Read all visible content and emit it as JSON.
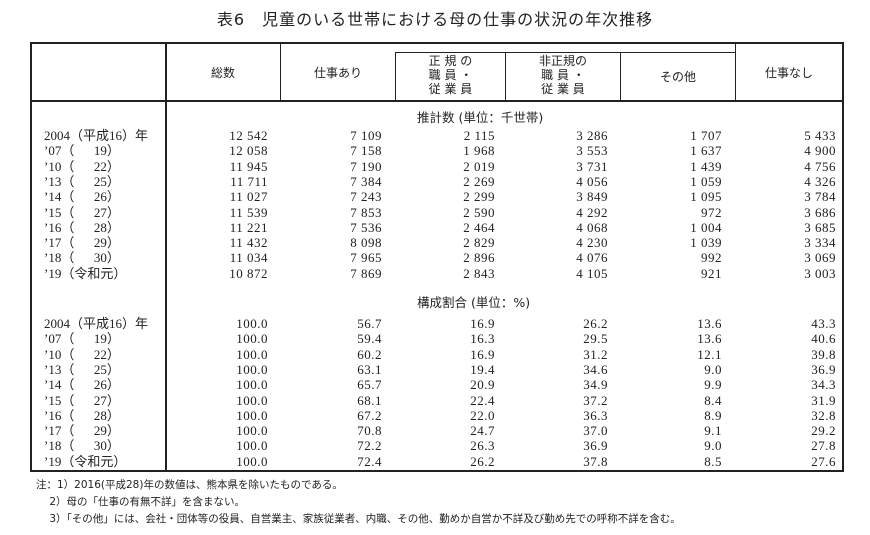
{
  "title": "表6　児童のいる世帯における母の仕事の状況の年次推移",
  "headers": {
    "total": "総数",
    "employed": "仕事あり",
    "regular": [
      "正 規 の",
      "職 員 ・",
      "従 業 員"
    ],
    "nonregular": [
      "非正規の",
      "職 員 ・",
      "従 業 員"
    ],
    "other": "その他",
    "unemployed": "仕事なし"
  },
  "sections": [
    {
      "label": "推計数 (単位：千世帯)",
      "rows": [
        {
          "year": "2004（平成16）年",
          "values": [
            "12 542",
            "7 109",
            "2 115",
            "3 286",
            "1 707",
            "5 433"
          ]
        },
        {
          "year": "’07（      19）",
          "values": [
            "12 058",
            "7 158",
            "1 968",
            "3 553",
            "1 637",
            "4 900"
          ]
        },
        {
          "year": "’10（      22）",
          "values": [
            "11 945",
            "7 190",
            "2 019",
            "3 731",
            "1 439",
            "4 756"
          ]
        },
        {
          "year": "’13（      25）",
          "values": [
            "11 711",
            "7 384",
            "2 269",
            "4 056",
            "1 059",
            "4 326"
          ]
        },
        {
          "year": "’14（      26）",
          "values": [
            "11 027",
            "7 243",
            "2 299",
            "3 849",
            "1 095",
            "3 784"
          ]
        },
        {
          "year": "’15（      27）",
          "values": [
            "11 539",
            "7 853",
            "2 590",
            "4 292",
            "972",
            "3 686"
          ]
        },
        {
          "year": "’16（      28）",
          "values": [
            "11 221",
            "7 536",
            "2 464",
            "4 068",
            "1 004",
            "3 685"
          ]
        },
        {
          "year": "’17（      29）",
          "values": [
            "11 432",
            "8 098",
            "2 829",
            "4 230",
            "1 039",
            "3 334"
          ]
        },
        {
          "year": "’18（      30）",
          "values": [
            "11 034",
            "7 965",
            "2 896",
            "4 076",
            "992",
            "3 069"
          ]
        },
        {
          "year": "’19（令和元）",
          "values": [
            "10 872",
            "7 869",
            "2 843",
            "4 105",
            "921",
            "3 003"
          ]
        }
      ]
    },
    {
      "label": "構成割合 (単位：%)",
      "rows": [
        {
          "year": "2004（平成16）年",
          "values": [
            "100.0",
            "56.7",
            "16.9",
            "26.2",
            "13.6",
            "43.3"
          ]
        },
        {
          "year": "’07（      19）",
          "values": [
            "100.0",
            "59.4",
            "16.3",
            "29.5",
            "13.6",
            "40.6"
          ]
        },
        {
          "year": "’10（      22）",
          "values": [
            "100.0",
            "60.2",
            "16.9",
            "31.2",
            "12.1",
            "39.8"
          ]
        },
        {
          "year": "’13（      25）",
          "values": [
            "100.0",
            "63.1",
            "19.4",
            "34.6",
            "9.0",
            "36.9"
          ]
        },
        {
          "year": "’14（      26）",
          "values": [
            "100.0",
            "65.7",
            "20.9",
            "34.9",
            "9.9",
            "34.3"
          ]
        },
        {
          "year": "’15（      27）",
          "values": [
            "100.0",
            "68.1",
            "22.4",
            "37.2",
            "8.4",
            "31.9"
          ]
        },
        {
          "year": "’16（      28）",
          "values": [
            "100.0",
            "67.2",
            "22.0",
            "36.3",
            "8.9",
            "32.8"
          ]
        },
        {
          "year": "’17（      29）",
          "values": [
            "100.0",
            "70.8",
            "24.7",
            "37.0",
            "9.1",
            "29.2"
          ]
        },
        {
          "year": "’18（      30）",
          "values": [
            "100.0",
            "72.2",
            "26.3",
            "36.9",
            "9.0",
            "27.8"
          ]
        },
        {
          "year": "’19（令和元）",
          "values": [
            "100.0",
            "72.4",
            "26.2",
            "37.8",
            "8.5",
            "27.6"
          ]
        }
      ]
    }
  ],
  "notes": [
    "注：1）2016(平成28)年の数値は、熊本県を除いたものである。",
    "    2）母の「仕事の有無不詳」を含まない。",
    "    3）「その他」には、会社・団体等の役員、自営業主、家族従業者、内職、その他、勤めか自営か不詳及び勤め先での呼称不詳を含む。"
  ]
}
